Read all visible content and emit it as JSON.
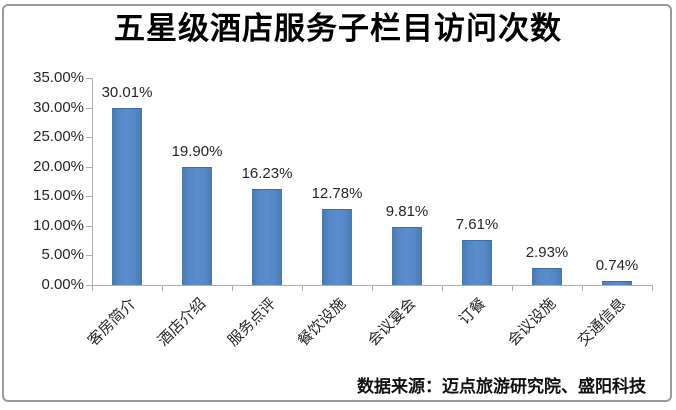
{
  "colors": {
    "bar": "#4F81BD",
    "axis": "#AEAEAE",
    "text": "#262626",
    "title": "#000000",
    "border": "#9A9A9A"
  },
  "chart_data": {
    "type": "bar",
    "title": "五星级酒店服务子栏目访问次数",
    "categories": [
      "客房简介",
      "酒店介绍",
      "服务点评",
      "餐饮设施",
      "会议宴会",
      "订餐",
      "会议设施",
      "交通信息"
    ],
    "values": [
      30.01,
      19.9,
      16.23,
      12.78,
      9.81,
      7.61,
      2.93,
      0.74
    ],
    "data_labels": [
      "30.01%",
      "19.90%",
      "16.23%",
      "12.78%",
      "9.81%",
      "7.61%",
      "2.93%",
      "0.74%"
    ],
    "y_ticks": [
      "35.00%",
      "30.00%",
      "25.00%",
      "20.00%",
      "15.00%",
      "10.00%",
      "5.00%",
      "0.00%"
    ],
    "ylim": [
      0,
      35
    ],
    "y_step": 5,
    "xlabel": "",
    "ylabel": "",
    "grid": false,
    "legend": "none",
    "x_label_rotation_deg": -45,
    "source_note": "数据来源：迈点旅游研究院、盛阳科技"
  }
}
